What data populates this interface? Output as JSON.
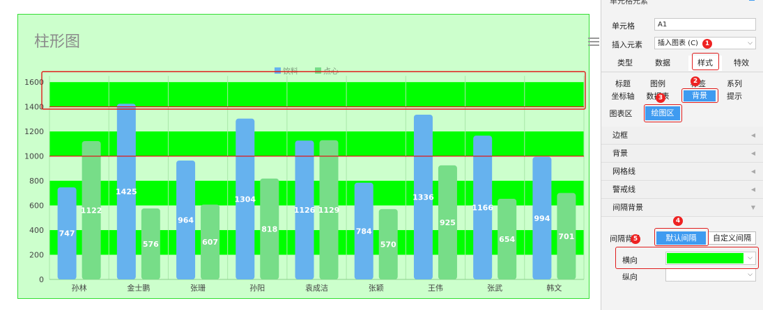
{
  "chart_data": {
    "type": "bar",
    "title": "柱形图",
    "categories": [
      "孙林",
      "金士鹏",
      "张珊",
      "孙阳",
      "袁成洁",
      "张颖",
      "王伟",
      "张武",
      "韩文"
    ],
    "series": [
      {
        "name": "饮料",
        "values": [
          747,
          1425,
          964,
          1304,
          1126,
          784,
          1336,
          1166,
          994
        ],
        "color": "#66b2ee"
      },
      {
        "name": "点心",
        "values": [
          1122,
          576,
          607,
          818,
          1129,
          570,
          925,
          654,
          701
        ],
        "color": "#77dd88"
      }
    ],
    "yticks": [
      0,
      200,
      400,
      600,
      800,
      1000,
      1200,
      1400,
      1600
    ],
    "ylim": [
      0,
      1650
    ],
    "legend_position": "top-center",
    "interval_bands": [
      [
        200,
        400
      ],
      [
        600,
        800
      ],
      [
        1000,
        1200
      ],
      [
        1400,
        1600
      ]
    ],
    "band_color": "#00ff00",
    "plot_background": "#ccffcc",
    "highlight_lines": [
      1000,
      1400
    ]
  },
  "colors": {
    "accent": "#3f9bf0",
    "highlight": "#e01b1b",
    "horizontal_color": "#00ff00"
  },
  "panel": {
    "top_label": "单元格元素",
    "cell": {
      "label": "单元格",
      "value": "A1"
    },
    "insert": {
      "label": "插入元素",
      "value": "插入图表 (C)"
    },
    "tabs": [
      "类型",
      "数据",
      "样式",
      "特效"
    ],
    "subtabs_row1": [
      "标题",
      "图例",
      "标签",
      "系列"
    ],
    "subtabs_row2": [
      "坐标轴",
      "数据表",
      "背景",
      "提示"
    ],
    "area_tabs": [
      "图表区",
      "绘图区"
    ],
    "sections": [
      "边框",
      "背景",
      "网格线",
      "警戒线",
      "间隔背景"
    ],
    "interval": {
      "label": "间隔背景",
      "default_btn": "默认间隔",
      "custom_btn": "自定义间隔"
    },
    "horizontal": {
      "label": "横向"
    },
    "vertical": {
      "label": "纵向"
    },
    "badges": [
      "1",
      "2",
      "3",
      "4",
      "5"
    ]
  },
  "icons": {
    "menu": "hamburger-menu-icon",
    "dropdown": "chevron-down-icon",
    "collapse": "triangle-left-icon",
    "expand": "triangle-down-icon"
  }
}
